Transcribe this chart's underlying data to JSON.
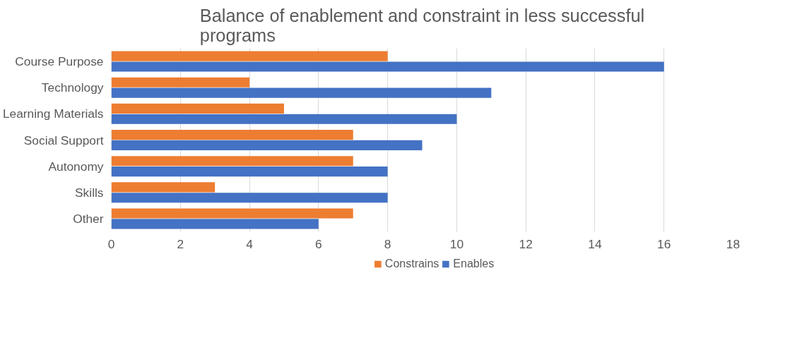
{
  "chart_data": {
    "type": "bar",
    "orientation": "horizontal",
    "title": "Balance of enablement and constraint in less successful programs",
    "categories": [
      "Course Purpose",
      "Technology",
      "Learning Materials",
      "Social Support",
      "Autonomy",
      "Skills",
      "Other"
    ],
    "series": [
      {
        "name": "Constrains",
        "color": "#ed7d31",
        "values": [
          8,
          4,
          5,
          7,
          7,
          3,
          7
        ]
      },
      {
        "name": "Enables",
        "color": "#4472c4",
        "values": [
          16,
          11,
          10,
          9,
          8,
          8,
          6
        ]
      }
    ],
    "xlim": [
      0,
      18
    ],
    "xticks": [
      0,
      2,
      4,
      6,
      8,
      10,
      12,
      14,
      16,
      18
    ],
    "grid": "x",
    "legend": "bottom"
  }
}
